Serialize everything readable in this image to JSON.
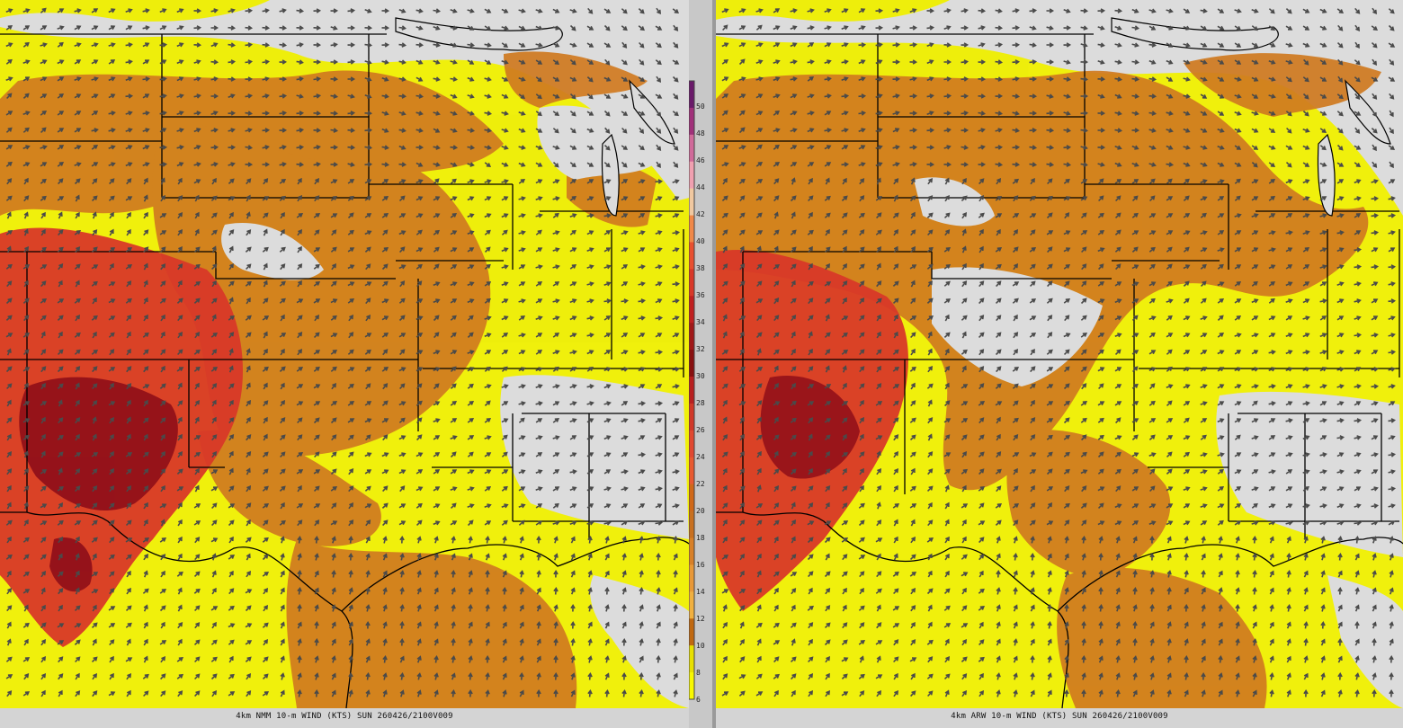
{
  "panels": [
    {
      "id": "left",
      "caption": "4km NMM 10-m WIND (KTS) SUN 260426/2100V009"
    },
    {
      "id": "right",
      "caption": "4km ARW 10-m WIND (KTS) SUN 260426/2100V009"
    }
  ],
  "colorbar": {
    "unit": "KTS",
    "labels": [
      "50",
      "48",
      "46",
      "44",
      "42",
      "40",
      "38",
      "36",
      "34",
      "32",
      "30",
      "28",
      "26",
      "24",
      "22",
      "20",
      "18",
      "16",
      "14",
      "12",
      "10",
      "8",
      "6"
    ],
    "colors": [
      "#6a1a6a",
      "#a0307a",
      "#d06a9a",
      "#f0a0b0",
      "#f0c8a0",
      "#f08848",
      "#e85030",
      "#d83828",
      "#c02020",
      "#a01818",
      "#881010",
      "#b82020",
      "#d03828",
      "#e04830",
      "#e85a30",
      "#d06818",
      "#c87020",
      "#d88028",
      "#e89838",
      "#f0b040",
      "#c06810",
      "#e8e000",
      "#f8f800"
    ],
    "background": "#dcdcdc"
  },
  "legend_colors": {
    "calm": "#dcdcdc",
    "light": "#f0f000",
    "moderate": "#d08020",
    "strong": "#d83020",
    "very_strong": "#8a0a18",
    "arrows": "#4a4a4a",
    "borders": "#000000"
  }
}
